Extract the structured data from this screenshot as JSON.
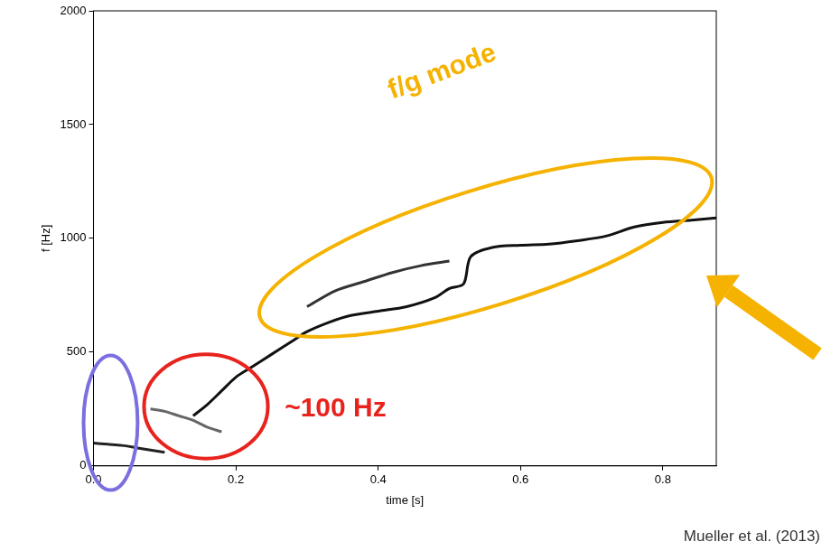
{
  "chart_data": {
    "type": "line",
    "x_label": "time [s]",
    "y_label": "f [Hz]",
    "source": "Mueller et al. (2013)",
    "xlim": [
      0,
      0.875
    ],
    "ylim": [
      0,
      2000
    ],
    "xticks": [
      {
        "value": 0,
        "label": "0.0"
      },
      0.2,
      0.4,
      0.6,
      0.8
    ],
    "yticks": [
      0,
      500,
      1000,
      1500,
      2000
    ],
    "grid": false,
    "series": [
      {
        "color": "#111111",
        "x": [
          0.14,
          0.16,
          0.18,
          0.2,
          0.22,
          0.25,
          0.28,
          0.3,
          0.33,
          0.36,
          0.4,
          0.44,
          0.48,
          0.5,
          0.52,
          0.53,
          0.56,
          0.6,
          0.64,
          0.68,
          0.72,
          0.76,
          0.8,
          0.84,
          0.875
        ],
        "values": [
          220,
          270,
          330,
          390,
          430,
          490,
          550,
          590,
          630,
          660,
          680,
          700,
          740,
          780,
          800,
          920,
          960,
          970,
          975,
          990,
          1010,
          1050,
          1070,
          1080,
          1090
        ]
      },
      {
        "color": "#333333",
        "x": [
          0.3,
          0.34,
          0.38,
          0.42,
          0.46,
          0.5
        ],
        "values": [
          700,
          770,
          810,
          850,
          880,
          900
        ]
      },
      {
        "color": "#222222",
        "x": [
          0,
          0.02,
          0.04,
          0.06,
          0.08,
          0.1
        ],
        "values": [
          100,
          95,
          90,
          80,
          70,
          60
        ]
      },
      {
        "color": "#666666",
        "x": [
          0.08,
          0.1,
          0.12,
          0.14,
          0.16,
          0.18
        ],
        "values": [
          250,
          240,
          220,
          200,
          170,
          150
        ]
      }
    ],
    "annotations": [
      {
        "text": "f/g mode",
        "x": 0.49,
        "y": 1730,
        "color": "#f5b200"
      },
      {
        "text": "~100 Hz",
        "x": 0.34,
        "y": 250,
        "color": "#e8231d"
      }
    ],
    "regions": [
      {
        "xlim": [
          -0.014,
          0.062
        ],
        "ylim": [
          -106,
          486
        ],
        "color": "#7b6fe0"
      },
      {
        "xlim": [
          0.071,
          0.245
        ],
        "ylim": [
          32,
          490
        ],
        "color": "#e8231d"
      },
      {
        "xlim": [
          0.219,
          0.883
        ],
        "ylim": [
          703,
          1217
        ],
        "color": "#f5b200"
      }
    ]
  }
}
